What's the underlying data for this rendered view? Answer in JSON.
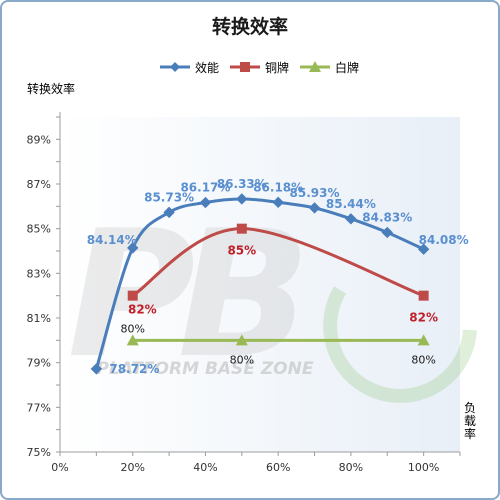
{
  "chart_data": {
    "type": "line",
    "title": "转换效率",
    "ylabel": "转换效率",
    "xlabel": "负载率",
    "ylim": [
      75,
      90
    ],
    "xlim": [
      0,
      110
    ],
    "yticks": [
      75,
      77,
      79,
      81,
      83,
      85,
      87,
      89
    ],
    "ytick_labels": [
      "75%",
      "77%",
      "79%",
      "81%",
      "83%",
      "85%",
      "87%",
      "89%"
    ],
    "xticks": [
      0,
      20,
      40,
      60,
      80,
      100
    ],
    "xtick_labels": [
      "0%",
      "20%",
      "40%",
      "60%",
      "80%",
      "100%"
    ],
    "grid": false,
    "legend_position": "top-center",
    "series": [
      {
        "name": "效能",
        "color": "#4a7ebb",
        "marker": "diamond",
        "x": [
          10,
          20,
          30,
          40,
          50,
          60,
          70,
          80,
          90,
          100
        ],
        "values": [
          78.72,
          84.14,
          85.73,
          86.17,
          86.33,
          86.18,
          85.93,
          85.44,
          84.83,
          84.08
        ],
        "labels": [
          "78.72%",
          "84.14%",
          "85.73%",
          "86.17%",
          "86.33%",
          "86.18%",
          "85.93%",
          "85.44%",
          "84.83%",
          "84.08%"
        ]
      },
      {
        "name": "铜牌",
        "color": "#be4b48",
        "marker": "square",
        "x": [
          20,
          50,
          100
        ],
        "values": [
          82,
          85,
          82
        ],
        "labels": [
          "82%",
          "85%",
          "82%"
        ]
      },
      {
        "name": "白牌",
        "color": "#98b954",
        "marker": "triangle",
        "x": [
          20,
          50,
          100
        ],
        "values": [
          80,
          80,
          80
        ],
        "labels": [
          "80%",
          "80%",
          "80%"
        ]
      }
    ],
    "watermark": {
      "logo": "PB",
      "text": "PLATFORM BASE ZONE"
    }
  }
}
